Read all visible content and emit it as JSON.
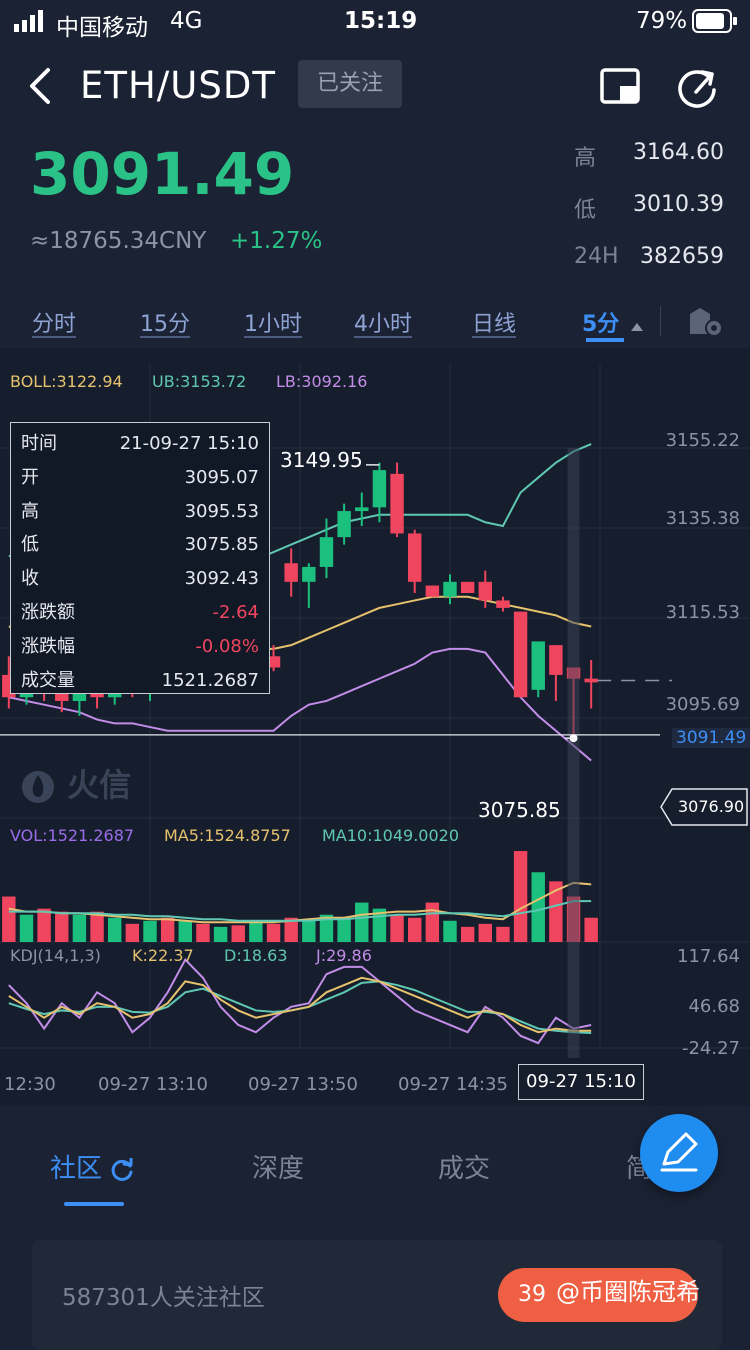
{
  "status_bar": {
    "carrier": "中国移动",
    "network": "4G",
    "time": "15:19",
    "battery": "79%"
  },
  "header": {
    "pair": "ETH/USDT",
    "follow_label": "已关注",
    "icons": [
      "back-arrow-icon",
      "picture-in-picture-icon",
      "share-icon"
    ]
  },
  "ticker": {
    "price": "3091.49",
    "cny": "≈18765.34CNY",
    "change_pct": "+1.27%",
    "high_label": "高",
    "high": "3164.60",
    "low_label": "低",
    "low": "3010.39",
    "vol_label": "24H",
    "vol": "382659"
  },
  "timeframes": [
    "分时",
    "15分",
    "1小时",
    "4小时",
    "日线",
    "5分"
  ],
  "active_timeframe": "5分",
  "indicators": {
    "boll": "BOLL:3122.94",
    "ub": "UB:3153.72",
    "lb": "LB:3092.16"
  },
  "tooltip": {
    "rows": [
      {
        "label": "时间",
        "value": "21-09-27 15:10"
      },
      {
        "label": "开",
        "value": "3095.07"
      },
      {
        "label": "高",
        "value": "3095.53"
      },
      {
        "label": "低",
        "value": "3075.85"
      },
      {
        "label": "收",
        "value": "3092.43"
      },
      {
        "label": "涨跌额",
        "value": "-2.64"
      },
      {
        "label": "涨跌幅",
        "value": "-0.08%"
      },
      {
        "label": "成交量",
        "value": "1521.2687"
      }
    ]
  },
  "price_axis": [
    "3155.22",
    "3135.38",
    "3115.53",
    "3095.69"
  ],
  "current_price_tag": "3091.49",
  "crosshair_price_tag": "3076.90",
  "high_marker": "3149.95",
  "low_marker": "3075.85",
  "logo_text": "火信",
  "volume_indicators": {
    "vol": "VOL:1521.2687",
    "ma5": "MA5:1524.8757",
    "ma10": "MA10:1049.0020"
  },
  "kdj": {
    "label": "KDJ(14,1,3)",
    "k": "K:22.37",
    "d": "D:18.63",
    "j": "J:29.86",
    "axis": [
      "117.64",
      "46.68",
      "-24.27"
    ]
  },
  "time_axis": [
    "12:30",
    "09-27 13:10",
    "09-27 13:50",
    "09-27 14:35"
  ],
  "crosshair_time": "09-27 15:10",
  "chart_data": {
    "type": "candlestick",
    "candles": [
      {
        "o": 3093,
        "h": 3098,
        "l": 3084,
        "c": 3087
      },
      {
        "o": 3087,
        "h": 3093,
        "l": 3085,
        "c": 3090
      },
      {
        "o": 3090,
        "h": 3094,
        "l": 3086,
        "c": 3088
      },
      {
        "o": 3088,
        "h": 3093,
        "l": 3083,
        "c": 3086
      },
      {
        "o": 3086,
        "h": 3092,
        "l": 3082,
        "c": 3089
      },
      {
        "o": 3089,
        "h": 3095,
        "l": 3084,
        "c": 3087
      },
      {
        "o": 3087,
        "h": 3095,
        "l": 3085,
        "c": 3092
      },
      {
        "o": 3092,
        "h": 3096,
        "l": 3087,
        "c": 3089
      },
      {
        "o": 3089,
        "h": 3094,
        "l": 3086,
        "c": 3093
      },
      {
        "o": 3093,
        "h": 3098,
        "l": 3088,
        "c": 3090
      },
      {
        "o": 3090,
        "h": 3095,
        "l": 3088,
        "c": 3094
      },
      {
        "o": 3094,
        "h": 3097,
        "l": 3090,
        "c": 3092
      },
      {
        "o": 3092,
        "h": 3097,
        "l": 3089,
        "c": 3095
      },
      {
        "o": 3095,
        "h": 3098,
        "l": 3091,
        "c": 3093
      },
      {
        "o": 3093,
        "h": 3100,
        "l": 3092,
        "c": 3098
      },
      {
        "o": 3098,
        "h": 3101,
        "l": 3094,
        "c": 3095
      },
      {
        "o": 3123,
        "h": 3127,
        "l": 3114,
        "c": 3118
      },
      {
        "o": 3118,
        "h": 3123,
        "l": 3111,
        "c": 3122
      },
      {
        "o": 3122,
        "h": 3135,
        "l": 3119,
        "c": 3130
      },
      {
        "o": 3130,
        "h": 3139,
        "l": 3128,
        "c": 3137
      },
      {
        "o": 3137,
        "h": 3142,
        "l": 3133,
        "c": 3138
      },
      {
        "o": 3138,
        "h": 3150,
        "l": 3134,
        "c": 3148
      },
      {
        "o": 3147,
        "h": 3150,
        "l": 3130,
        "c": 3131
      },
      {
        "o": 3131,
        "h": 3132,
        "l": 3115,
        "c": 3118
      },
      {
        "o": 3117,
        "h": 3117,
        "l": 3114,
        "c": 3114
      },
      {
        "o": 3114,
        "h": 3120,
        "l": 3112,
        "c": 3118
      },
      {
        "o": 3118,
        "h": 3118,
        "l": 3115,
        "c": 3115
      },
      {
        "o": 3118,
        "h": 3121,
        "l": 3111,
        "c": 3113
      },
      {
        "o": 3113,
        "h": 3114,
        "l": 3110,
        "c": 3111
      },
      {
        "o": 3110,
        "h": 3110,
        "l": 3087,
        "c": 3087
      },
      {
        "o": 3089,
        "h": 3102,
        "l": 3087,
        "c": 3102
      },
      {
        "o": 3101,
        "h": 3101,
        "l": 3086,
        "c": 3093
      },
      {
        "o": 3095,
        "h": 3095,
        "l": 3076,
        "c": 3092
      },
      {
        "o": 3092,
        "h": 3097,
        "l": 3084,
        "c": 3091
      }
    ],
    "boll_mid": [
      3106,
      3105,
      3104,
      3103,
      3102,
      3101,
      3101,
      3100,
      3100,
      3100,
      3099,
      3099,
      3099,
      3099,
      3100,
      3100,
      3101,
      3103,
      3105,
      3107,
      3109,
      3111,
      3112,
      3113,
      3114,
      3114,
      3114,
      3113,
      3112,
      3111,
      3110,
      3109,
      3107,
      3106
    ],
    "boll_upper": [
      3125,
      3124,
      3123,
      3123,
      3122,
      3122,
      3122,
      3122,
      3122,
      3122,
      3122,
      3122,
      3122,
      3123,
      3124,
      3126,
      3128,
      3130,
      3132,
      3134,
      3135,
      3136,
      3136,
      3136,
      3136,
      3136,
      3136,
      3134,
      3133,
      3142,
      3146,
      3150,
      3153,
      3155
    ],
    "boll_lower": [
      3087,
      3086,
      3085,
      3084,
      3083,
      3081,
      3080,
      3080,
      3079,
      3078,
      3078,
      3078,
      3078,
      3078,
      3078,
      3078,
      3082,
      3085,
      3086,
      3088,
      3090,
      3092,
      3094,
      3096,
      3099,
      3100,
      3100,
      3099,
      3093,
      3087,
      3082,
      3078,
      3074,
      3070
    ],
    "volume": [
      30,
      18,
      22,
      20,
      18,
      20,
      16,
      12,
      14,
      16,
      14,
      12,
      10,
      11,
      14,
      12,
      16,
      14,
      18,
      16,
      26,
      22,
      18,
      16,
      26,
      14,
      10,
      12,
      10,
      60,
      46,
      40,
      30,
      16
    ],
    "vol_ma5": [
      22,
      20,
      20,
      19,
      19,
      18,
      17,
      16,
      15,
      15,
      14,
      13,
      13,
      13,
      13,
      13,
      14,
      15,
      16,
      16,
      18,
      19,
      20,
      20,
      21,
      19,
      18,
      16,
      15,
      22,
      28,
      34,
      39,
      38
    ],
    "vol_ma10": [
      20,
      20,
      20,
      19,
      19,
      19,
      18,
      18,
      17,
      17,
      16,
      15,
      15,
      14,
      14,
      14,
      14,
      14,
      15,
      15,
      16,
      17,
      18,
      18,
      19,
      19,
      19,
      18,
      17,
      19,
      21,
      24,
      27,
      27
    ],
    "kdj_k": [
      70,
      55,
      40,
      55,
      45,
      60,
      55,
      40,
      45,
      60,
      90,
      85,
      65,
      50,
      40,
      45,
      50,
      55,
      75,
      85,
      95,
      90,
      80,
      70,
      60,
      50,
      40,
      50,
      45,
      30,
      20,
      25,
      22,
      22
    ],
    "kdj_d": [
      60,
      52,
      45,
      50,
      48,
      55,
      55,
      48,
      47,
      55,
      75,
      80,
      70,
      60,
      50,
      48,
      50,
      55,
      65,
      75,
      88,
      90,
      85,
      78,
      68,
      58,
      48,
      48,
      45,
      35,
      25,
      22,
      20,
      19
    ],
    "kdj_j": [
      85,
      60,
      25,
      60,
      40,
      75,
      60,
      20,
      40,
      75,
      120,
      95,
      55,
      30,
      20,
      40,
      55,
      60,
      100,
      110,
      110,
      90,
      70,
      50,
      40,
      30,
      20,
      55,
      40,
      15,
      5,
      40,
      25,
      30
    ]
  }
}
